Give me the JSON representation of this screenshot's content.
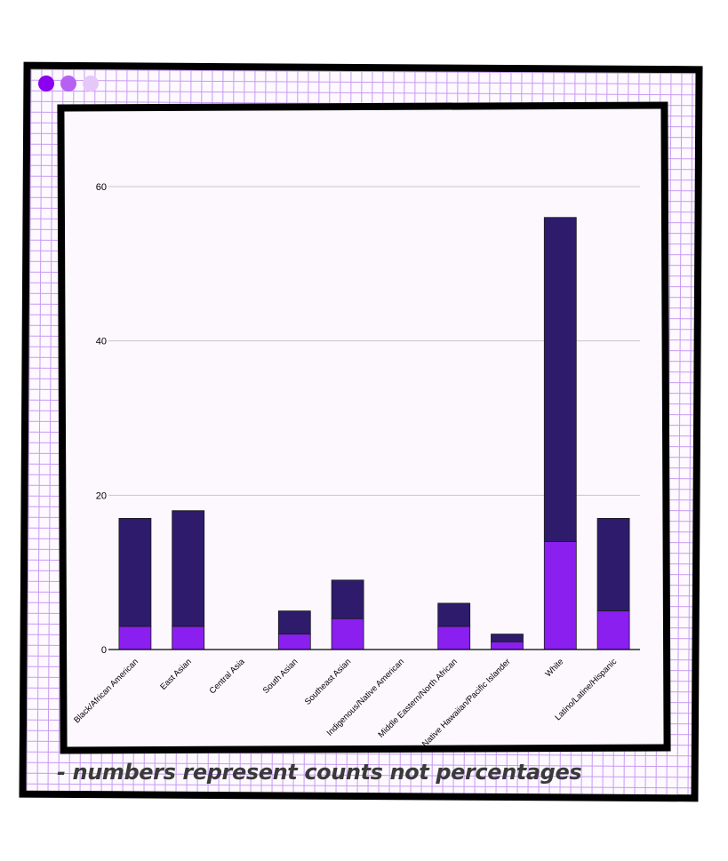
{
  "window": {
    "dots": [
      {
        "name": "dot-dark",
        "color": "#8b00f0"
      },
      {
        "name": "dot-medium",
        "color": "#b661f2"
      },
      {
        "name": "dot-light",
        "color": "#e5c8f8"
      }
    ]
  },
  "note": "- numbers represent counts not percentages",
  "colors": {
    "bottom": "#8a1ff0",
    "top": "#2e1b6b",
    "grid": "#c9c4d3",
    "axis": "#000000",
    "text": "#000000"
  },
  "chart_data": {
    "type": "bar",
    "stacked": true,
    "categories": [
      "Black/African American",
      "East Asian",
      "Central Asia",
      "South Asian",
      "Southeast Asian",
      "Indigenous/Native American",
      "Middle Eastern/North African",
      "Native Hawaiian/Pacific Islander",
      "White",
      "Latino/Latine/Hispanic"
    ],
    "series": [
      {
        "values": [
          3,
          3,
          0,
          2,
          4,
          0,
          3,
          1,
          14,
          5
        ],
        "color": "#8a1ff0"
      },
      {
        "values": [
          14,
          15,
          0,
          3,
          5,
          0,
          3,
          1,
          42,
          12
        ],
        "color": "#2e1b6b"
      }
    ],
    "totals": [
      17,
      18,
      0,
      5,
      9,
      0,
      6,
      2,
      56,
      17
    ],
    "ylim": [
      0,
      60
    ],
    "yticks": [
      0,
      20,
      40,
      60
    ],
    "grid": true,
    "title": "",
    "xlabel": "",
    "ylabel": ""
  }
}
